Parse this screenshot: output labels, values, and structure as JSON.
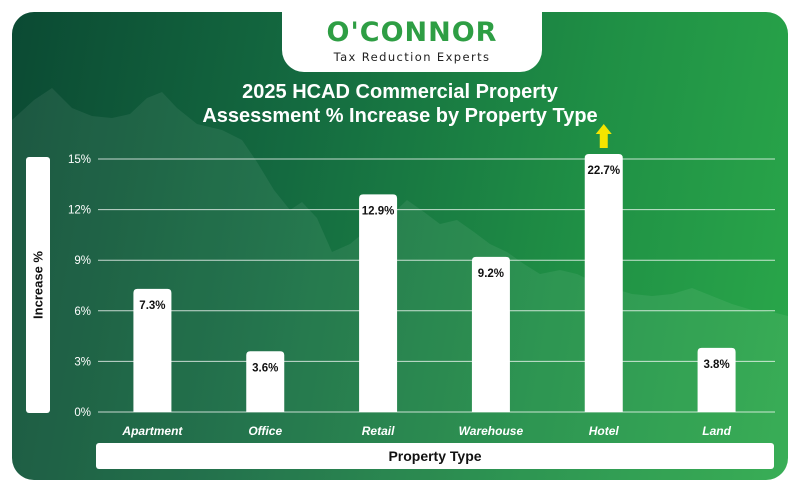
{
  "brand": {
    "name": "O'CONNOR",
    "tagline": "Tax Reduction Experts",
    "primary_color": "#2e9e44"
  },
  "chart_data": {
    "type": "bar",
    "title": "2025 HCAD Commercial Property Assessment % Increase by Property Type",
    "title_lines": [
      "2025 HCAD Commercial Property",
      "Assessment % Increase by Property Type"
    ],
    "xlabel": "Property Type",
    "ylabel": "Increase %",
    "categories": [
      "Apartment",
      "Office",
      "Retail",
      "Warehouse",
      "Hotel",
      "Land"
    ],
    "values": [
      7.3,
      3.6,
      12.9,
      9.2,
      22.7,
      3.8
    ],
    "value_labels": [
      "7.3%",
      "3.6%",
      "12.9%",
      "9.2%",
      "22.7%",
      "3.8%"
    ],
    "ylim": [
      0,
      15
    ],
    "yticks": [
      0,
      3,
      6,
      9,
      12,
      15
    ],
    "ytick_labels": [
      "0%",
      "3%",
      "6%",
      "9%",
      "12%",
      "15%"
    ],
    "grid": true,
    "bar_color": "#ffffff",
    "annotation": {
      "category": "Hotel",
      "symbol": "up-arrow-icon",
      "color": "#f5e400",
      "meaning": "value exceeds axis maximum"
    }
  }
}
